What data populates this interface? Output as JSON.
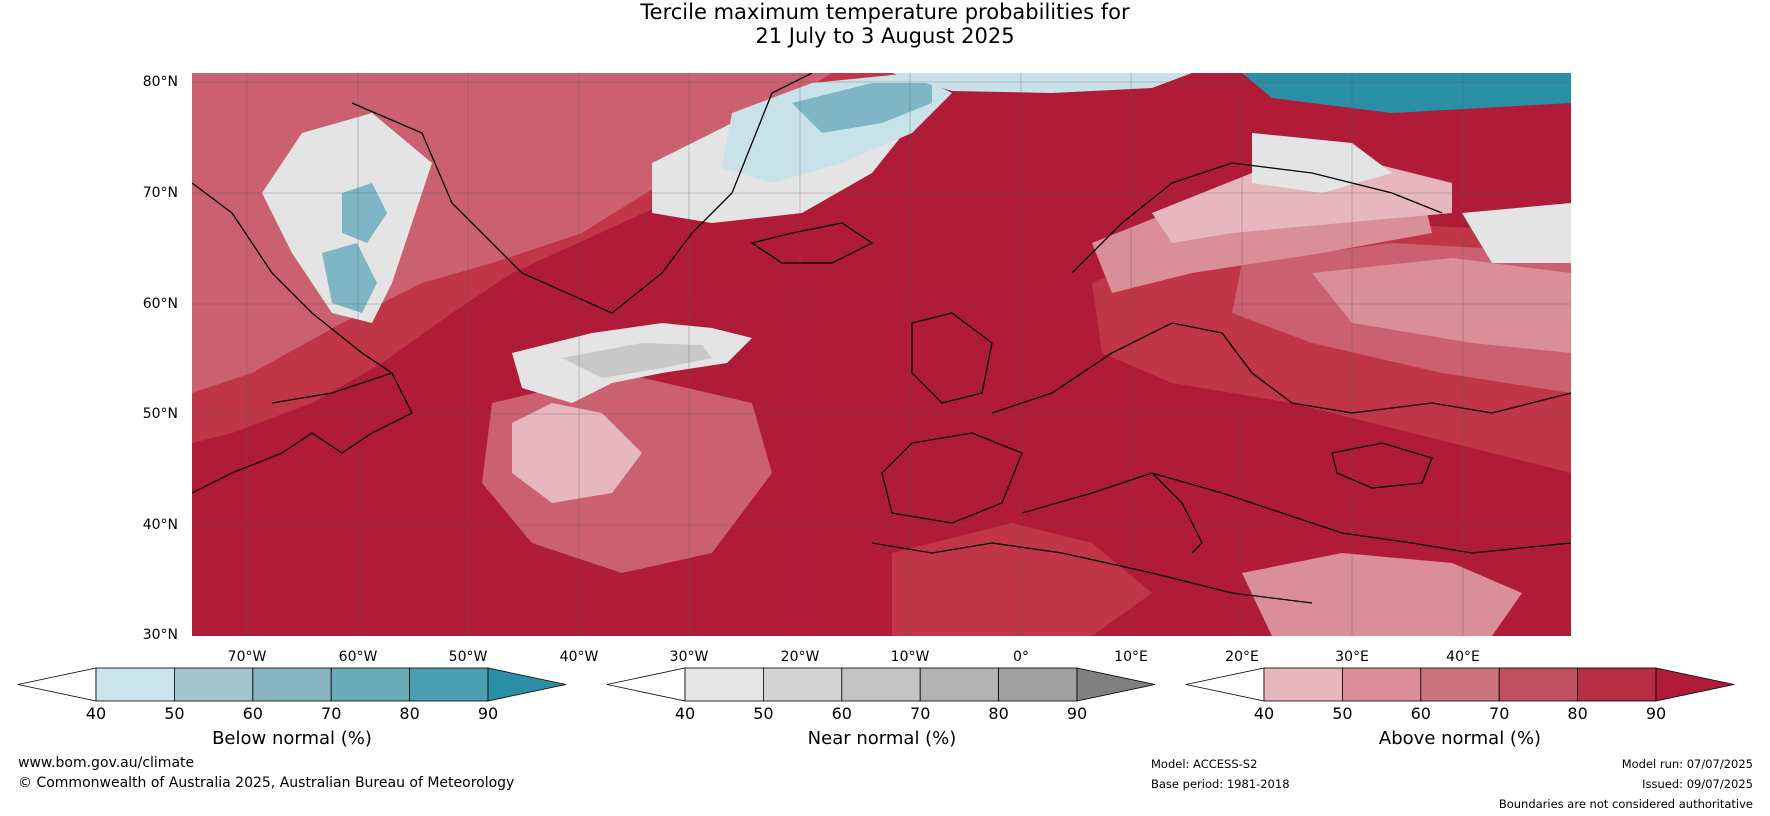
{
  "title_line1": "Tercile maximum temperature probabilities for",
  "title_line2": "21 July to 3 August 2025",
  "map": {
    "lat_labels": [
      "80°N",
      "70°N",
      "60°N",
      "50°N",
      "40°N",
      "30°N"
    ],
    "lon_labels": [
      "70°W",
      "60°W",
      "50°W",
      "40°W",
      "30°W",
      "20°W",
      "10°W",
      "0°",
      "10°E",
      "20°E",
      "30°E",
      "40°E"
    ],
    "colors": {
      "ocean_base": "#b01c38",
      "above_90": "#b01c38",
      "above_80": "#c13548",
      "above_70": "#cb6070",
      "above_60": "#d98e98",
      "above_50": "#e6b7bd",
      "near_light": "#e4e4e4",
      "near_mid": "#c8c8c8",
      "below_light": "#c9e2ea",
      "below_mid": "#7fb6c5",
      "below_dark": "#2a8fa5",
      "coast": "#000000",
      "borders": "#7a7a7a"
    }
  },
  "colorbars": [
    {
      "name": "Below normal (%)",
      "ticks": [
        "40",
        "50",
        "60",
        "70",
        "80",
        "90"
      ],
      "colors": [
        "#ffffff",
        "#cbe3ea",
        "#a5c5cc",
        "#88b5bf",
        "#6aabba",
        "#4b9fb1",
        "#2a8fa5"
      ]
    },
    {
      "name": "Near normal (%)",
      "ticks": [
        "40",
        "50",
        "60",
        "70",
        "80",
        "90"
      ],
      "colors": [
        "#ffffff",
        "#e5e5e5",
        "#d4d4d4",
        "#c3c3c3",
        "#b2b2b2",
        "#a0a0a0",
        "#808080"
      ]
    },
    {
      "name": "Above normal (%)",
      "ticks": [
        "40",
        "50",
        "60",
        "70",
        "80",
        "90"
      ],
      "colors": [
        "#ffffff",
        "#e6b7bd",
        "#d98e98",
        "#cb7480",
        "#c0505f",
        "#b72d43",
        "#b01c38"
      ]
    }
  ],
  "footer": {
    "website": "www.bom.gov.au/climate",
    "copyright": "© Commonwealth of Australia 2025, Australian Bureau of Meteorology",
    "model": "Model: ACCESS-S2",
    "base_period": "Base period: 1981-2018",
    "model_run": "Model run: 07/07/2025",
    "issued": "Issued: 09/07/2025",
    "disclaimer": "Boundaries are not considered authoritative"
  }
}
